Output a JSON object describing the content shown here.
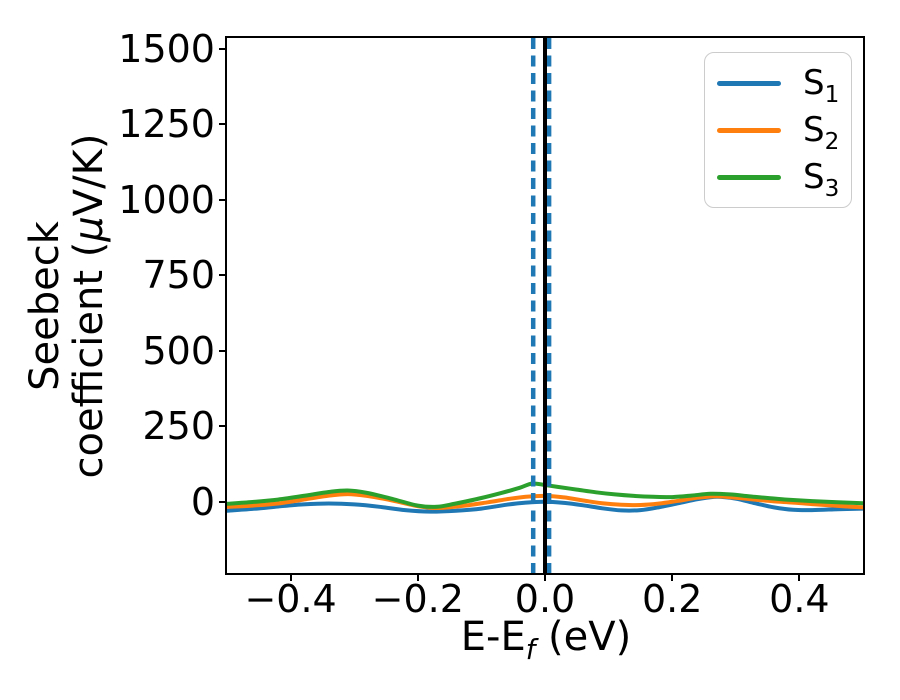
{
  "figure": {
    "background": "#ffffff",
    "ylabel": {
      "line1": "Seebeck",
      "line2_pre": "coefficient (",
      "line2_mu": "μ",
      "line2_post": "V/K)"
    },
    "xlabel": {
      "pre": "E-E",
      "sub": "f",
      "post": " (eV)"
    }
  },
  "colors": {
    "axis": "#000000",
    "text": "#000000",
    "legend_border": "#cccccc",
    "s1_blue": "#1f77b4",
    "s2_orange": "#ff7f0e",
    "s3_green": "#2ca02c",
    "vline_black": "#000000"
  },
  "chart_data": {
    "type": "line",
    "title": "",
    "xlabel": "E-E_f (eV)",
    "ylabel": "Seebeck coefficient (μV/K)",
    "grid": false,
    "legend_position": "upper right",
    "xlim": [
      -0.5,
      0.5
    ],
    "ylim": [
      -235,
      1535
    ],
    "x_ticks": {
      "values": [
        -0.4,
        -0.2,
        0.0,
        0.2,
        0.4
      ],
      "labels": [
        "−0.4",
        "−0.2",
        "0.0",
        "0.2",
        "0.4"
      ]
    },
    "y_ticks": {
      "values": [
        0,
        250,
        500,
        750,
        1000,
        1250,
        1500
      ],
      "labels": [
        "0",
        "250",
        "500",
        "750",
        "1000",
        "1250",
        "1500"
      ]
    },
    "series": [
      {
        "name": "S1",
        "label_main": "S",
        "label_sub": "1",
        "color": "#1f77b4",
        "points": [
          [
            -0.5,
            -29
          ],
          [
            -0.46,
            -23
          ],
          [
            -0.42,
            -15
          ],
          [
            -0.38,
            -8
          ],
          [
            -0.34,
            -5
          ],
          [
            -0.3,
            -8
          ],
          [
            -0.26,
            -16
          ],
          [
            -0.22,
            -27
          ],
          [
            -0.18,
            -32
          ],
          [
            -0.14,
            -29
          ],
          [
            -0.1,
            -22
          ],
          [
            -0.06,
            -9
          ],
          [
            -0.03,
            -2
          ],
          [
            0.0,
            1
          ],
          [
            0.03,
            -3
          ],
          [
            0.06,
            -11
          ],
          [
            0.09,
            -21
          ],
          [
            0.12,
            -28
          ],
          [
            0.15,
            -27
          ],
          [
            0.18,
            -17
          ],
          [
            0.21,
            -4
          ],
          [
            0.24,
            9
          ],
          [
            0.27,
            17
          ],
          [
            0.3,
            11
          ],
          [
            0.33,
            -4
          ],
          [
            0.36,
            -18
          ],
          [
            0.39,
            -26
          ],
          [
            0.42,
            -27
          ],
          [
            0.46,
            -24
          ],
          [
            0.5,
            -22
          ]
        ]
      },
      {
        "name": "S2",
        "label_main": "S",
        "label_sub": "2",
        "color": "#ff7f0e",
        "points": [
          [
            -0.5,
            -16
          ],
          [
            -0.46,
            -12
          ],
          [
            -0.42,
            -5
          ],
          [
            -0.38,
            8
          ],
          [
            -0.34,
            21
          ],
          [
            -0.31,
            26
          ],
          [
            -0.28,
            20
          ],
          [
            -0.24,
            5
          ],
          [
            -0.2,
            -14
          ],
          [
            -0.17,
            -20
          ],
          [
            -0.13,
            -13
          ],
          [
            -0.09,
            -1
          ],
          [
            -0.06,
            9
          ],
          [
            -0.03,
            17
          ],
          [
            0.0,
            20
          ],
          [
            0.03,
            15
          ],
          [
            0.06,
            5
          ],
          [
            0.09,
            -4
          ],
          [
            0.12,
            -9
          ],
          [
            0.15,
            -10
          ],
          [
            0.18,
            -5
          ],
          [
            0.21,
            4
          ],
          [
            0.24,
            14
          ],
          [
            0.27,
            19
          ],
          [
            0.3,
            14
          ],
          [
            0.33,
            8
          ],
          [
            0.36,
            2
          ],
          [
            0.39,
            -2
          ],
          [
            0.42,
            -7
          ],
          [
            0.46,
            -13
          ],
          [
            0.5,
            -18
          ]
        ]
      },
      {
        "name": "S3",
        "label_main": "S",
        "label_sub": "3",
        "color": "#2ca02c",
        "points": [
          [
            -0.5,
            -6
          ],
          [
            -0.46,
            0
          ],
          [
            -0.42,
            8
          ],
          [
            -0.38,
            20
          ],
          [
            -0.34,
            33
          ],
          [
            -0.31,
            38
          ],
          [
            -0.28,
            30
          ],
          [
            -0.24,
            10
          ],
          [
            -0.2,
            -12
          ],
          [
            -0.17,
            -16
          ],
          [
            -0.14,
            -5
          ],
          [
            -0.1,
            13
          ],
          [
            -0.07,
            29
          ],
          [
            -0.04,
            47
          ],
          [
            -0.02,
            61
          ],
          [
            0.0,
            56
          ],
          [
            0.02,
            50
          ],
          [
            0.05,
            41
          ],
          [
            0.08,
            32
          ],
          [
            0.11,
            25
          ],
          [
            0.14,
            20
          ],
          [
            0.17,
            17
          ],
          [
            0.2,
            16
          ],
          [
            0.23,
            21
          ],
          [
            0.26,
            27
          ],
          [
            0.29,
            25
          ],
          [
            0.32,
            19
          ],
          [
            0.35,
            13
          ],
          [
            0.38,
            8
          ],
          [
            0.42,
            3
          ],
          [
            0.46,
            -1
          ],
          [
            0.5,
            -4
          ]
        ]
      }
    ],
    "vlines": [
      {
        "x": -0.0185,
        "color": "#1f77b4",
        "style": "dashed"
      },
      {
        "x": 0.0065,
        "color": "#1f77b4",
        "style": "dashed"
      },
      {
        "x": 0.0,
        "color": "#000000",
        "style": "solid"
      }
    ]
  }
}
